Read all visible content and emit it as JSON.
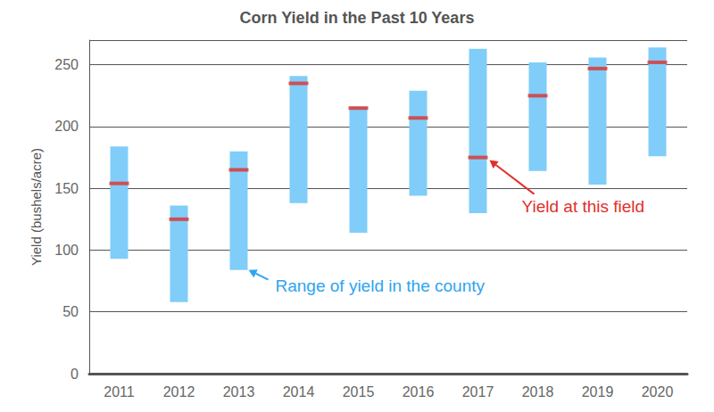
{
  "chart_data": {
    "type": "bar",
    "title": "Corn Yield in the Past 10 Years",
    "y_label": "Yield (bushels/acre)",
    "categories": [
      "2011",
      "2012",
      "2013",
      "2014",
      "2015",
      "2016",
      "2017",
      "2018",
      "2019",
      "2020"
    ],
    "series": [
      {
        "type": "range",
        "color": "#80cdf9",
        "low": [
          93,
          58,
          84,
          138,
          114,
          144,
          130,
          164,
          153,
          176
        ],
        "high": [
          184,
          136,
          180,
          241,
          216,
          229,
          263,
          252,
          256,
          264
        ],
        "annotation": {
          "text": "Range of yield in the county",
          "color": "#2ea4f0",
          "category": "2013"
        }
      },
      {
        "type": "marker",
        "color": "#e0302a",
        "values": [
          154,
          125,
          165,
          235,
          215,
          207,
          175,
          225,
          247,
          252
        ],
        "annotation": {
          "text": "Yield at this field",
          "color": "#e0302a",
          "category": "2017"
        }
      }
    ],
    "ylim": [
      0,
      270
    ],
    "yticks": [
      0,
      50,
      100,
      150,
      200,
      250
    ],
    "grid": true
  }
}
